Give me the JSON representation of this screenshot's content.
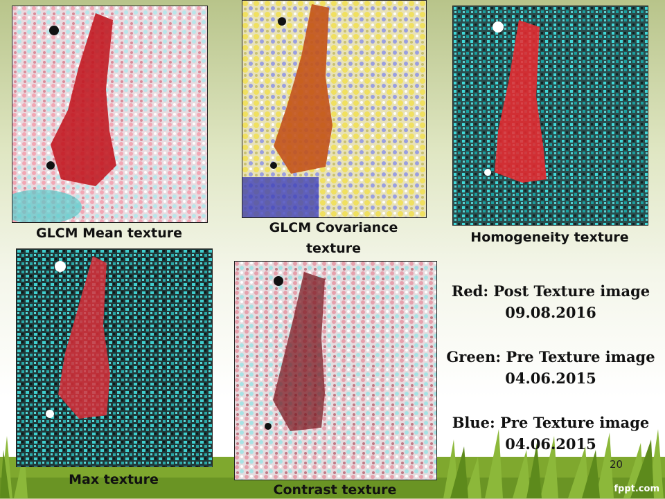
{
  "panels": [
    {
      "caption": "GLCM Mean texture"
    },
    {
      "caption": "GLCM Covariance texture"
    },
    {
      "caption": "Homogeneity texture"
    },
    {
      "caption": "Max texture"
    },
    {
      "caption": "Contrast texture"
    }
  ],
  "legend": {
    "red_line1": "Red: Post Texture image",
    "red_line2": "09.08.2016",
    "green_line1": "Green: Pre Texture image",
    "green_line2": "04.06.2015",
    "blue_line1": "Blue: Pre Texture image",
    "blue_line2": "04.06.2015"
  },
  "slide_number": "20",
  "brand": "fppt.com"
}
